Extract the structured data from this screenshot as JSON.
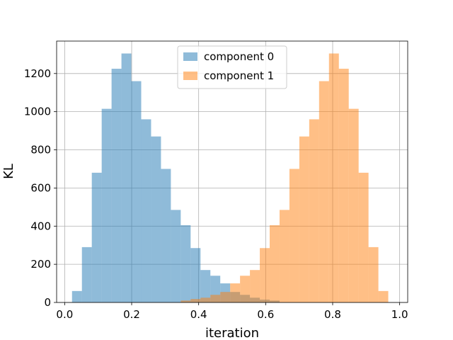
{
  "chart_data": {
    "type": "histogram",
    "xlabel": "iteration",
    "ylabel": "KL",
    "xlim": [
      -0.024,
      1.024
    ],
    "ylim": [
      0,
      1370
    ],
    "xticks": [
      0.0,
      0.2,
      0.4,
      0.6,
      0.8,
      1.0
    ],
    "xtick_labels": [
      "0.0",
      "0.2",
      "0.4",
      "0.6",
      "0.8",
      "1.0"
    ],
    "yticks": [
      0,
      200,
      400,
      600,
      800,
      1000,
      1200
    ],
    "ytick_labels": [
      "0",
      "200",
      "400",
      "600",
      "800",
      "1000",
      "1200"
    ],
    "grid": true,
    "legend_position": "top-center",
    "bin_width": 0.0295,
    "series": [
      {
        "name": "component 0",
        "color": "#1f77b4",
        "alpha": 0.5,
        "bins": [
          {
            "x0": 0.022,
            "value": 60
          },
          {
            "x0": 0.0515,
            "value": 290
          },
          {
            "x0": 0.081,
            "value": 680
          },
          {
            "x0": 0.1105,
            "value": 1015
          },
          {
            "x0": 0.14,
            "value": 1225
          },
          {
            "x0": 0.1695,
            "value": 1305
          },
          {
            "x0": 0.199,
            "value": 1160
          },
          {
            "x0": 0.2285,
            "value": 960
          },
          {
            "x0": 0.258,
            "value": 870
          },
          {
            "x0": 0.2875,
            "value": 700
          },
          {
            "x0": 0.317,
            "value": 485
          },
          {
            "x0": 0.3465,
            "value": 405
          },
          {
            "x0": 0.376,
            "value": 285
          },
          {
            "x0": 0.4055,
            "value": 170
          },
          {
            "x0": 0.435,
            "value": 140
          },
          {
            "x0": 0.4645,
            "value": 100
          },
          {
            "x0": 0.494,
            "value": 55
          },
          {
            "x0": 0.5235,
            "value": 40
          },
          {
            "x0": 0.553,
            "value": 25
          },
          {
            "x0": 0.5825,
            "value": 15
          },
          {
            "x0": 0.612,
            "value": 10
          }
        ]
      },
      {
        "name": "component 1",
        "color": "#ff7f0e",
        "alpha": 0.5,
        "bins": [
          {
            "x0": 0.3465,
            "value": 10
          },
          {
            "x0": 0.376,
            "value": 18
          },
          {
            "x0": 0.4055,
            "value": 25
          },
          {
            "x0": 0.435,
            "value": 40
          },
          {
            "x0": 0.4645,
            "value": 55
          },
          {
            "x0": 0.494,
            "value": 100
          },
          {
            "x0": 0.5235,
            "value": 140
          },
          {
            "x0": 0.553,
            "value": 170
          },
          {
            "x0": 0.5825,
            "value": 285
          },
          {
            "x0": 0.612,
            "value": 405
          },
          {
            "x0": 0.6415,
            "value": 485
          },
          {
            "x0": 0.671,
            "value": 700
          },
          {
            "x0": 0.7005,
            "value": 870
          },
          {
            "x0": 0.73,
            "value": 960
          },
          {
            "x0": 0.7595,
            "value": 1160
          },
          {
            "x0": 0.789,
            "value": 1305
          },
          {
            "x0": 0.8185,
            "value": 1225
          },
          {
            "x0": 0.848,
            "value": 1015
          },
          {
            "x0": 0.8775,
            "value": 680
          },
          {
            "x0": 0.907,
            "value": 290
          },
          {
            "x0": 0.9365,
            "value": 60
          }
        ]
      }
    ]
  }
}
